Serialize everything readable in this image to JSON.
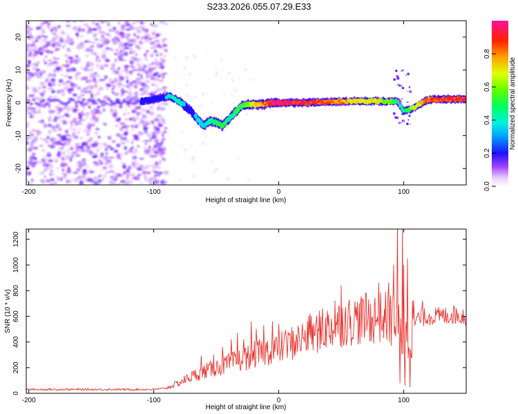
{
  "title": "S233.2026.055.07.29.E33",
  "chart_data": [
    {
      "type": "heatmap",
      "xlabel": "Height of straight line (km)",
      "ylabel": "Frequency (Hz)",
      "xlim": [
        -202,
        150
      ],
      "ylim": [
        -25,
        25
      ],
      "xticks": [
        -200,
        -100,
        0,
        100
      ],
      "xtick_labels": [
        "-200",
        "-100",
        "0",
        "100"
      ],
      "yticks": [
        -20,
        -10,
        0,
        10,
        20
      ],
      "ytick_labels": [
        "-20",
        "-10",
        "0",
        "10",
        "20"
      ],
      "colorbar": {
        "label": "Normalized spectral amplitude",
        "range": [
          0.0,
          1.0
        ],
        "ticks": [
          0.0,
          0.2,
          0.4,
          0.6,
          0.8
        ],
        "tick_labels": [
          "0.0",
          "0.2",
          "0.4",
          "0.6",
          "0.8"
        ]
      },
      "ridge": {
        "x": [
          -110,
          -95,
          -88,
          -80,
          -75,
          -70,
          -65,
          -60,
          -55,
          -50,
          -45,
          -40,
          -35,
          -30,
          -25,
          -20,
          -15,
          -10,
          -5,
          0,
          20,
          40,
          60,
          80,
          90,
          95,
          100,
          105,
          120,
          150
        ],
        "freq": [
          0.5,
          1.5,
          2.0,
          0.5,
          -1.0,
          -2.5,
          -5.0,
          -7.0,
          -5.5,
          -6.0,
          -7.0,
          -5.0,
          -3.0,
          -1.0,
          -0.5,
          -0.5,
          -0.5,
          -0.3,
          0.0,
          0.0,
          0.0,
          0.3,
          0.5,
          0.5,
          0.3,
          0.5,
          -2.5,
          -2.0,
          1.0,
          1.2
        ],
        "amplitude": [
          0.15,
          0.25,
          0.4,
          0.45,
          0.35,
          0.3,
          0.4,
          0.35,
          0.45,
          0.5,
          0.55,
          0.45,
          0.5,
          0.55,
          0.6,
          0.75,
          0.85,
          0.9,
          0.95,
          1.0,
          0.95,
          0.9,
          0.75,
          0.7,
          0.6,
          0.45,
          0.45,
          0.6,
          0.9,
          0.95
        ]
      },
      "noise_region": [
        -202,
        -90
      ]
    },
    {
      "type": "line",
      "xlabel": "Height of straight line (km)",
      "ylabel": "SNR (10 * v/v)",
      "xlim": [
        -202,
        150
      ],
      "ylim": [
        0,
        1280
      ],
      "xticks": [
        -200,
        -100,
        0,
        100
      ],
      "xtick_labels": [
        "-200",
        "-100",
        "0",
        "100"
      ],
      "yticks": [
        0,
        200,
        400,
        600,
        800,
        1000,
        1200
      ],
      "ytick_labels": [
        "0",
        "200",
        "400",
        "600",
        "800",
        "1000",
        "1200"
      ],
      "color": "#e8322e",
      "envelope": {
        "x": [
          -202,
          -150,
          -100,
          -90,
          -80,
          -70,
          -60,
          -50,
          -40,
          -30,
          -20,
          -10,
          0,
          10,
          20,
          30,
          40,
          50,
          60,
          70,
          80,
          90,
          95,
          100,
          105,
          110,
          120,
          130,
          140,
          150
        ],
        "y": [
          30,
          30,
          30,
          40,
          80,
          130,
          170,
          200,
          230,
          260,
          300,
          330,
          350,
          390,
          430,
          470,
          510,
          550,
          570,
          580,
          590,
          590,
          520,
          400,
          450,
          580,
          600,
          600,
          610,
          600
        ]
      },
      "spikes": {
        "x": [
          -62,
          -52,
          -45,
          -38,
          -33,
          -28,
          -22,
          -18,
          -12,
          -5,
          0,
          5,
          25,
          35,
          45,
          50,
          55,
          70,
          80,
          88,
          92,
          95,
          97,
          99,
          100,
          101,
          103,
          105,
          107,
          115,
          140
        ],
        "y": [
          290,
          300,
          360,
          420,
          470,
          420,
          560,
          500,
          530,
          560,
          540,
          460,
          620,
          660,
          720,
          840,
          450,
          780,
          860,
          860,
          1000,
          1300,
          80,
          1290,
          1000,
          60,
          1050,
          50,
          720,
          720,
          680
        ]
      }
    }
  ]
}
